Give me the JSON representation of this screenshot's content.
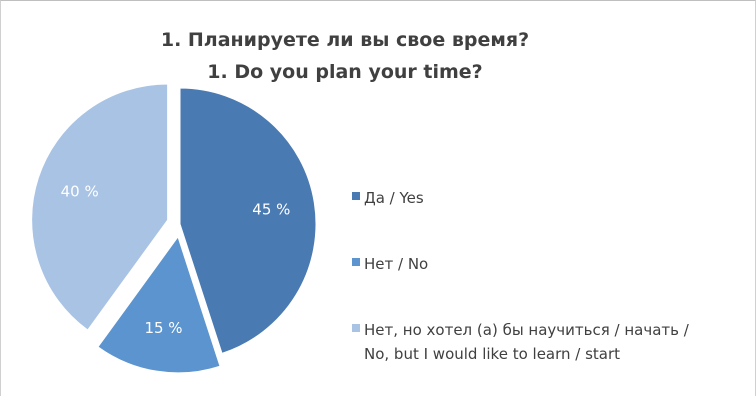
{
  "chart_data": {
    "type": "pie",
    "title": "1. Планируете ли вы свое время?",
    "subtitle": "1. Do you plan your time?",
    "slices": [
      {
        "label": "Да / Yes",
        "value": 45,
        "display": "45 %",
        "color": "#4a7ab2",
        "exploded": false
      },
      {
        "label": "Нет / No",
        "value": 15,
        "display": "15 %",
        "color": "#5b94cf",
        "exploded": true
      },
      {
        "label": "Нет, но хотел (а) бы научиться / начать / No, but I would like to learn / start",
        "value": 40,
        "display": "40 %",
        "color": "#a9c3e4",
        "exploded": true
      }
    ],
    "legend_position": "right"
  },
  "legend": {
    "item0": "Да / Yes",
    "item1": "Нет / No",
    "item2_line1": "Нет, но хотел (а) бы научиться / начать /",
    "item2_line2": "No, but I would like to learn / start"
  }
}
